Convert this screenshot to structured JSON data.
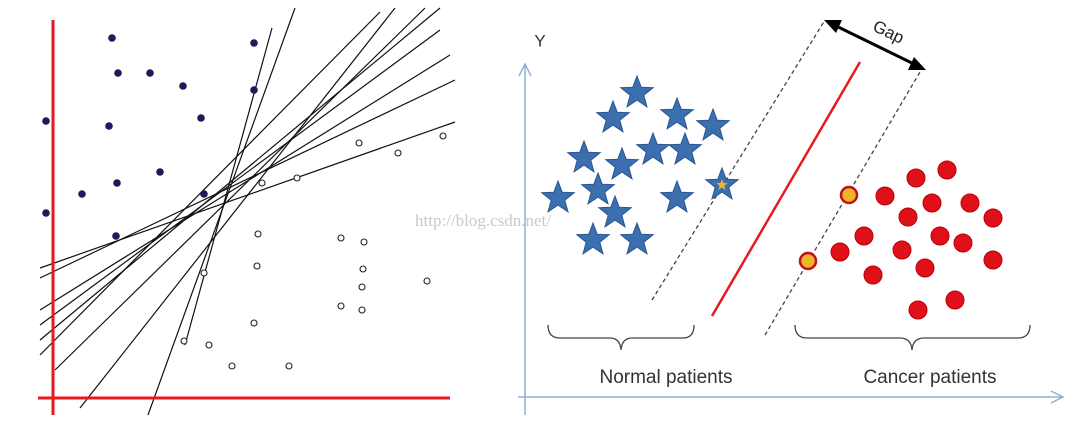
{
  "right_panel": {
    "y_axis_label": "Y",
    "gap_label": "Gap",
    "left_group_label": "Normal patients",
    "right_group_label": "Cancer patients"
  },
  "watermark": "http://blog.csdn.net/"
}
